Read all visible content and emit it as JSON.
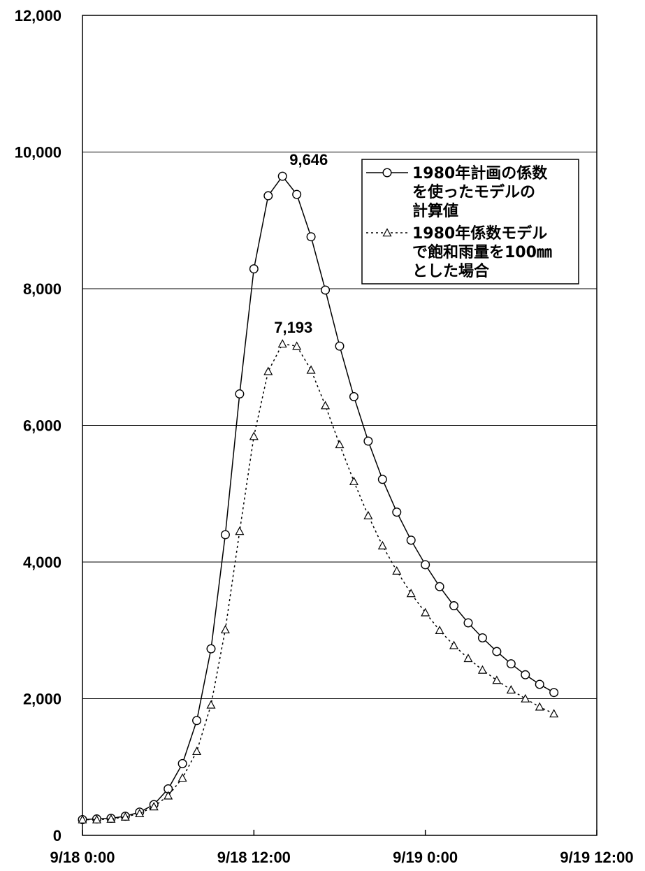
{
  "chart_data": {
    "type": "line",
    "title": "",
    "xlabel": "",
    "ylabel": "",
    "ylim": [
      0,
      12000
    ],
    "y_ticks": [
      "0",
      "2,000",
      "4,000",
      "6,000",
      "8,000",
      "10,000",
      "12,000"
    ],
    "x_ticks": [
      "9/18 0:00",
      "9/18 12:00",
      "9/19 0:00",
      "9/19 12:00"
    ],
    "x_range_hours": [
      0,
      36
    ],
    "x_interval_hours": 1,
    "grid": "horizontal",
    "legend_position": "top-right",
    "series": [
      {
        "name": "1980年計画の係数を使ったモデルの計算値",
        "name_lines": [
          "1980年計画の係数",
          "を使ったモデルの",
          "計算値"
        ],
        "line_style": "solid",
        "marker": "circle",
        "color": "#000000",
        "values": [
          230,
          240,
          250,
          280,
          340,
          450,
          680,
          1050,
          1680,
          2730,
          4400,
          6460,
          8290,
          9360,
          9646,
          9380,
          8760,
          7980,
          7160,
          6420,
          5770,
          5210,
          4730,
          4320,
          3960,
          3640,
          3360,
          3110,
          2890,
          2690,
          2510,
          2350,
          2210,
          2090
        ]
      },
      {
        "name": "1980年係数モデルで飽和雨量を100mmとした場合",
        "name_lines": [
          "1980年係数モデル",
          "で飽和雨量を100㎜",
          "とした場合"
        ],
        "line_style": "dotted",
        "marker": "triangle",
        "color": "#000000",
        "values": [
          230,
          230,
          240,
          270,
          320,
          420,
          580,
          840,
          1230,
          1910,
          3010,
          4450,
          5840,
          6790,
          7193,
          7160,
          6810,
          6290,
          5720,
          5180,
          4680,
          4240,
          3870,
          3540,
          3260,
          3000,
          2780,
          2590,
          2420,
          2270,
          2130,
          2000,
          1880,
          1780
        ]
      }
    ],
    "annotations": [
      {
        "text": "9,646",
        "series": 0,
        "index": 14
      },
      {
        "text": "7,193",
        "series": 1,
        "index": 14
      }
    ]
  }
}
